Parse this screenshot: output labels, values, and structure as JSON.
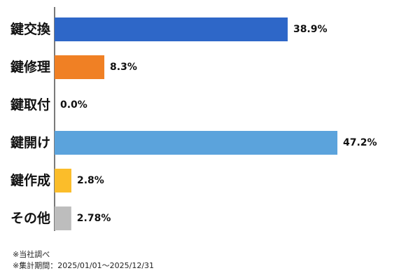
{
  "chart_data": {
    "type": "bar",
    "orientation": "horizontal",
    "categories": [
      "鍵交換",
      "鍵修理",
      "鍵取付",
      "鍵開け",
      "鍵作成",
      "その他"
    ],
    "values": [
      38.9,
      8.3,
      0.0,
      47.2,
      2.8,
      2.78
    ],
    "value_labels": [
      "38.9%",
      "8.3%",
      "0.0%",
      "47.2%",
      "2.8%",
      "2.78%"
    ],
    "colors": [
      "#2e67c8",
      "#f08024",
      "#9e9e9e",
      "#5ba3dc",
      "#fbbd2a",
      "#bdbdbd"
    ],
    "xlim": [
      0,
      50
    ],
    "grid": false,
    "legend": "none"
  },
  "footnotes": {
    "source": "※当社調べ",
    "period": "※集計期間：2025/01/01～2025/12/31"
  }
}
